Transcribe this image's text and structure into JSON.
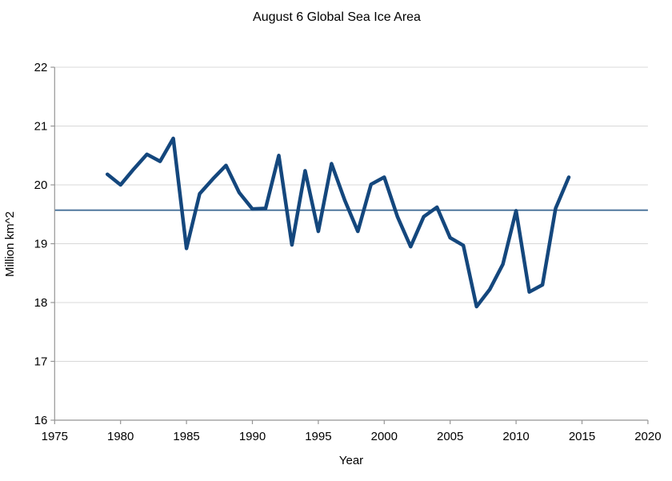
{
  "chart_data": {
    "type": "line",
    "title": "August 6 Global Sea Ice Area",
    "xlabel": "Year",
    "ylabel": "Million km^2",
    "xlim": [
      1975,
      2020
    ],
    "ylim": [
      16,
      22
    ],
    "x_ticks": [
      1975,
      1980,
      1985,
      1990,
      1995,
      2000,
      2005,
      2010,
      2015,
      2020
    ],
    "y_ticks": [
      16,
      17,
      18,
      19,
      20,
      21,
      22
    ],
    "grid": "horizontal",
    "legend": "none",
    "x": [
      1979,
      1980,
      1981,
      1982,
      1983,
      1984,
      1985,
      1986,
      1987,
      1988,
      1989,
      1990,
      1991,
      1992,
      1993,
      1994,
      1995,
      1996,
      1997,
      1998,
      1999,
      2000,
      2001,
      2002,
      2003,
      2004,
      2005,
      2006,
      2007,
      2008,
      2009,
      2010,
      2011,
      2012,
      2013,
      2014
    ],
    "series": [
      {
        "name": "August 6 global sea ice area",
        "values": [
          20.18,
          20.0,
          20.27,
          20.52,
          20.4,
          20.79,
          18.92,
          19.85,
          20.1,
          20.33,
          19.87,
          19.59,
          19.6,
          20.5,
          18.98,
          20.24,
          19.21,
          20.36,
          19.74,
          19.21,
          20.01,
          20.13,
          19.46,
          18.95,
          19.46,
          19.62,
          19.1,
          18.97,
          17.93,
          18.22,
          18.65,
          19.56,
          18.18,
          18.3,
          19.6,
          20.13
        ]
      }
    ],
    "reference_line": {
      "value": 19.57
    }
  },
  "colors": {
    "series": "#14477D",
    "reference": "#3A6791",
    "grid": "#D8D8D8",
    "axis": "#959595",
    "text": "#000000",
    "background": "#FFFFFF"
  }
}
